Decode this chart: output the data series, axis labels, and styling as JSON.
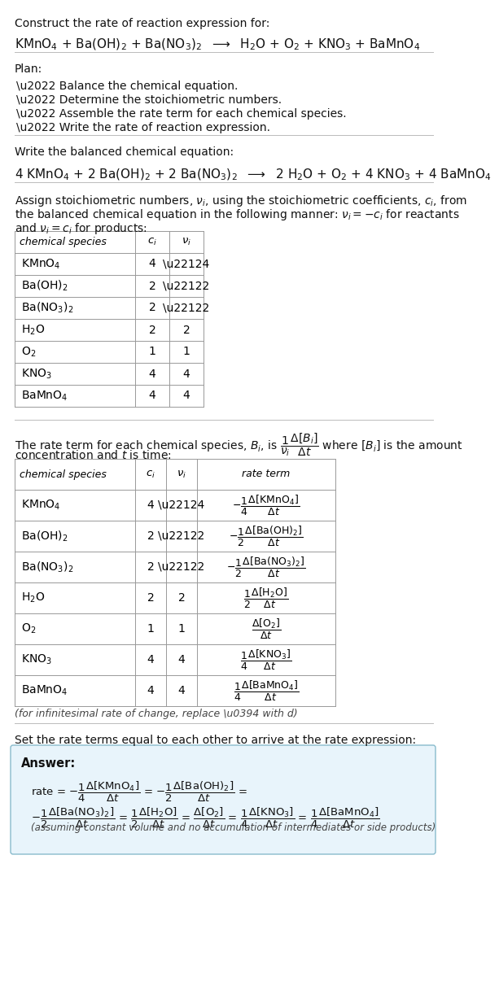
{
  "title_line1": "Construct the rate of reaction expression for:",
  "title_line2": "KMnO$_4$ + Ba(OH)$_2$ + Ba(NO$_3$)$_2$  $\\longrightarrow$  H$_2$O + O$_2$ + KNO$_3$ + BaMnO$_4$",
  "plan_header": "Plan:",
  "plan_items": [
    "\\u2022 Balance the chemical equation.",
    "\\u2022 Determine the stoichiometric numbers.",
    "\\u2022 Assemble the rate term for each chemical species.",
    "\\u2022 Write the rate of reaction expression."
  ],
  "balanced_header": "Write the balanced chemical equation:",
  "balanced_eq": "4 KMnO$_4$ + 2 Ba(OH)$_2$ + 2 Ba(NO$_3$)$_2$  $\\longrightarrow$  2 H$_2$O + O$_2$ + 4 KNO$_3$ + 4 BaMnO$_4$",
  "stoich_header_l1": "Assign stoichiometric numbers, $\\nu_i$, using the stoichiometric coefficients, $c_i$, from",
  "stoich_header_l2": "the balanced chemical equation in the following manner: $\\nu_i = -c_i$ for reactants",
  "stoich_header_l3": "and $\\nu_i = c_i$ for products:",
  "table1_col_header": "chemical species",
  "table1_ci_header": "$c_i$",
  "table1_ni_header": "$\\nu_i$",
  "table1_data": [
    [
      "KMnO$_4$",
      "4",
      "\\u22124"
    ],
    [
      "Ba(OH)$_2$",
      "2",
      "\\u22122"
    ],
    [
      "Ba(NO$_3$)$_2$",
      "2",
      "\\u22122"
    ],
    [
      "H$_2$O",
      "2",
      "2"
    ],
    [
      "O$_2$",
      "1",
      "1"
    ],
    [
      "KNO$_3$",
      "4",
      "4"
    ],
    [
      "BaMnO$_4$",
      "4",
      "4"
    ]
  ],
  "rate_intro_l1": "The rate term for each chemical species, $B_i$, is $\\dfrac{1}{\\nu_i}\\dfrac{\\Delta[B_i]}{\\Delta t}$ where $[B_i]$ is the amount",
  "rate_intro_l2": "concentration and $t$ is time:",
  "table2_col1_header": "chemical species",
  "table2_col2_header": "$c_i$",
  "table2_col3_header": "$\\nu_i$",
  "table2_col4_header": "rate term",
  "table2_data": [
    [
      "KMnO$_4$",
      "4",
      "\\u22124",
      "$-\\dfrac{1}{4}\\dfrac{\\Delta[\\mathrm{KMnO_4}]}{\\Delta t}$"
    ],
    [
      "Ba(OH)$_2$",
      "2",
      "\\u22122",
      "$-\\dfrac{1}{2}\\dfrac{\\Delta[\\mathrm{Ba(OH)_2}]}{\\Delta t}$"
    ],
    [
      "Ba(NO$_3$)$_2$",
      "2",
      "\\u22122",
      "$-\\dfrac{1}{2}\\dfrac{\\Delta[\\mathrm{Ba(NO_3)_2}]}{\\Delta t}$"
    ],
    [
      "H$_2$O",
      "2",
      "2",
      "$\\dfrac{1}{2}\\dfrac{\\Delta[\\mathrm{H_2O}]}{\\Delta t}$"
    ],
    [
      "O$_2$",
      "1",
      "1",
      "$\\dfrac{\\Delta[\\mathrm{O_2}]}{\\Delta t}$"
    ],
    [
      "KNO$_3$",
      "4",
      "4",
      "$\\dfrac{1}{4}\\dfrac{\\Delta[\\mathrm{KNO_3}]}{\\Delta t}$"
    ],
    [
      "BaMnO$_4$",
      "4",
      "4",
      "$\\dfrac{1}{4}\\dfrac{\\Delta[\\mathrm{BaMnO_4}]}{\\Delta t}$"
    ]
  ],
  "infinitesimal_note": "(for infinitesimal rate of change, replace \\u0394 with d)",
  "rate_expr_header": "Set the rate terms equal to each other to arrive at the rate expression:",
  "answer_label": "Answer:",
  "ans_line1": "rate = $-\\dfrac{1}{4}\\dfrac{\\Delta[\\mathrm{KMnO_4}]}{\\Delta t}$ = $-\\dfrac{1}{2}\\dfrac{\\Delta[\\mathrm{Ba(OH)_2}]}{\\Delta t}$ =",
  "ans_line2": "$-\\dfrac{1}{2}\\dfrac{\\Delta[\\mathrm{Ba(NO_3)_2}]}{\\Delta t}$ = $\\dfrac{1}{2}\\dfrac{\\Delta[\\mathrm{H_2O}]}{\\Delta t}$ = $\\dfrac{\\Delta[\\mathrm{O_2}]}{\\Delta t}$ = $\\dfrac{1}{4}\\dfrac{\\Delta[\\mathrm{KNO_3}]}{\\Delta t}$ = $\\dfrac{1}{4}\\dfrac{\\Delta[\\mathrm{BaMnO_4}]}{\\Delta t}$",
  "ans_footnote": "(assuming constant volume and no accumulation of intermediates or side products)",
  "bg_color": "#ffffff",
  "answer_box_color": "#e8f4fb",
  "answer_box_border": "#88bbcc",
  "table_border_color": "#999999",
  "separator_color": "#bbbbbb"
}
